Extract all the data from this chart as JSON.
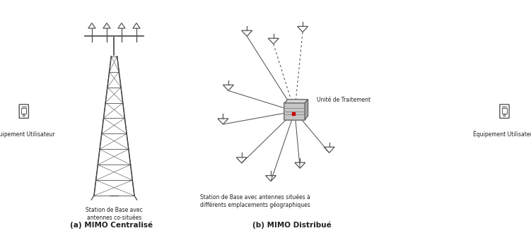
{
  "bg_color": "#ffffff",
  "title_a": "(a) MIMO Centralisé",
  "title_b": "(b) MIMO Distribué",
  "label_ue_left": "Équipement Utilisateur",
  "label_ue_right": "Équipement Utilisateur",
  "label_bs_a": "Station de Base avec\nantennes co-situées",
  "label_bs_b": "Station de Base avec antennes situées à\ndifférents emplacements géographiques",
  "label_unit": "Unité de Traitement",
  "figsize": [
    7.51,
    3.3
  ],
  "dpi": 100,
  "tower_color": "#444444",
  "antenna_color": "#555555",
  "line_color": "#555555",
  "text_color": "#222222",
  "red_dot": "#cc0000",
  "box_face": "#c8c8c8",
  "box_edge": "#666666"
}
